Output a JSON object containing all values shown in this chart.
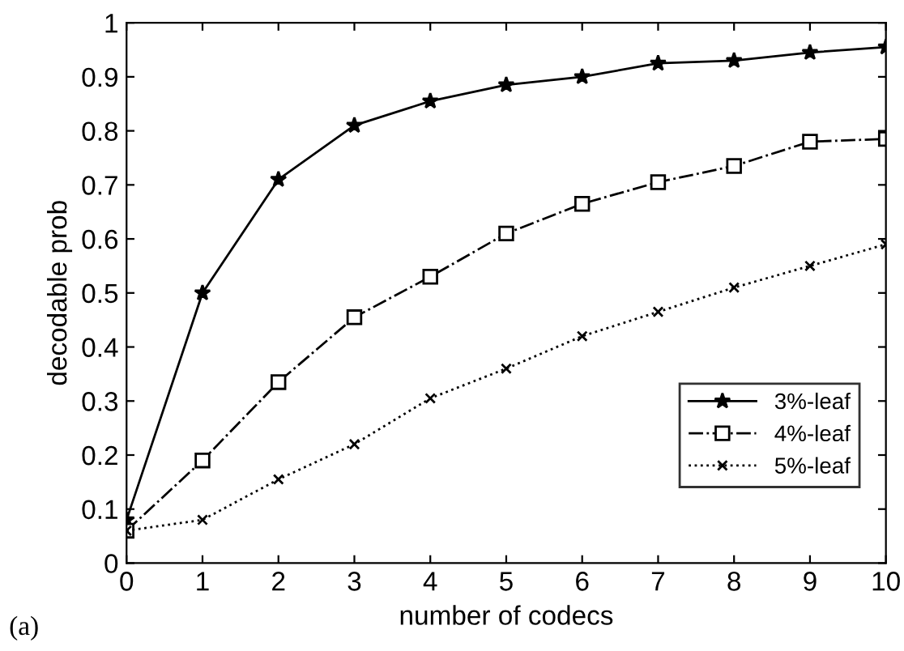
{
  "chart_data": {
    "type": "line",
    "xlabel": "number of codecs",
    "ylabel": "decodable prob",
    "x": [
      0,
      1,
      2,
      3,
      4,
      5,
      6,
      7,
      8,
      9,
      10
    ],
    "series": [
      {
        "name": "3%-leaf",
        "color": "#000000",
        "marker": "star",
        "line_style": "solid",
        "values": [
          0.08,
          0.5,
          0.71,
          0.81,
          0.855,
          0.885,
          0.9,
          0.925,
          0.93,
          0.945,
          0.955
        ]
      },
      {
        "name": "4%-leaf",
        "color": "#000000",
        "marker": "square",
        "line_style": "dashdot",
        "values": [
          0.06,
          0.19,
          0.335,
          0.455,
          0.53,
          0.61,
          0.665,
          0.705,
          0.735,
          0.78,
          0.785
        ]
      },
      {
        "name": "5%-leaf",
        "color": "#000000",
        "marker": "cross",
        "line_style": "dotted",
        "values": [
          0.06,
          0.08,
          0.155,
          0.22,
          0.305,
          0.36,
          0.42,
          0.465,
          0.51,
          0.55,
          0.59
        ]
      }
    ],
    "xlim": [
      0,
      10
    ],
    "xticks": [
      0,
      1,
      2,
      3,
      4,
      5,
      6,
      7,
      8,
      9,
      10
    ],
    "ylim": [
      0,
      1
    ],
    "yticks": [
      0,
      0.1,
      0.2,
      0.3,
      0.4,
      0.5,
      0.6,
      0.7,
      0.8,
      0.9,
      1
    ],
    "grid": false,
    "legend": "lower right",
    "annotations": [
      "(a)"
    ]
  }
}
